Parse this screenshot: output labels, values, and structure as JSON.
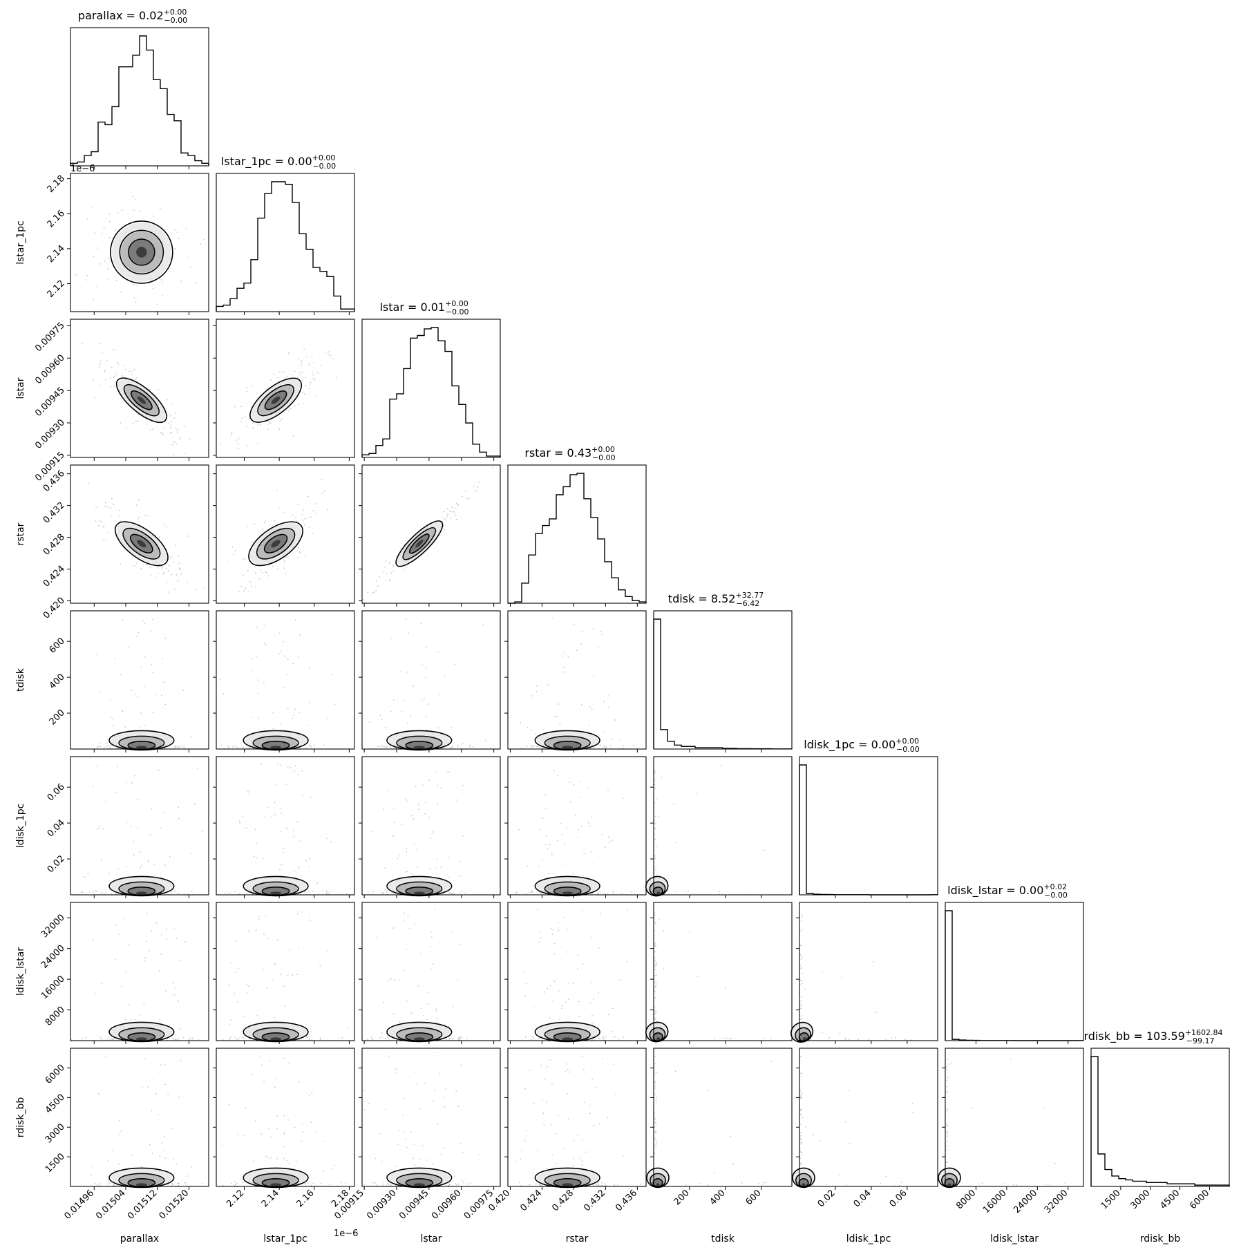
{
  "chart_data": {
    "type": "corner",
    "parameters": [
      {
        "name": "parallax",
        "xlabel": "parallax",
        "ylabel": "",
        "ticks": [
          "0.01496",
          "0.01504",
          "0.01512",
          "0.01520"
        ],
        "title": "parallax = 0.02",
        "plus": "+0.00",
        "minus": "−0.00",
        "offset": "",
        "median": 0.01508,
        "range": [
          0.0149,
          0.01525
        ],
        "skewed": false
      },
      {
        "name": "lstar_1pc",
        "xlabel": "lstar_1pc",
        "ylabel": "lstar_1pc",
        "ticks": [
          "2.12",
          "2.14",
          "2.16",
          "2.18"
        ],
        "title": "lstar_1pc = 0.00",
        "plus": "+0.00",
        "minus": "−0.00",
        "offset": "1e−6",
        "median": 2.138,
        "range": [
          2.104,
          2.183
        ],
        "skewed": false
      },
      {
        "name": "lstar",
        "xlabel": "lstar",
        "ylabel": "lstar",
        "ticks": [
          "0.00915",
          "0.00930",
          "0.00945",
          "0.00960",
          "0.00975"
        ],
        "title": "lstar = 0.01",
        "plus": "+0.00",
        "minus": "−0.00",
        "offset": "",
        "median": 0.009405,
        "range": [
          0.00914,
          0.00978
        ],
        "skewed": false
      },
      {
        "name": "rstar",
        "xlabel": "rstar",
        "ylabel": "rstar",
        "ticks": [
          "0.420",
          "0.424",
          "0.428",
          "0.432",
          "0.436"
        ],
        "title": "rstar = 0.43",
        "plus": "+0.00",
        "minus": "−0.00",
        "offset": "",
        "median": 0.4272,
        "range": [
          0.4197,
          0.4371
        ],
        "skewed": false
      },
      {
        "name": "tdisk",
        "xlabel": "tdisk",
        "ylabel": "tdisk",
        "ticks": [
          "200",
          "400",
          "600"
        ],
        "title": "tdisk = 8.52",
        "plus": "+32.77",
        "minus": "−6.42",
        "offset": "",
        "median": 8.52,
        "range": [
          0,
          770
        ],
        "skewed": true
      },
      {
        "name": "ldisk_1pc",
        "xlabel": "ldisk_1pc",
        "ylabel": "ldisk_1pc",
        "ticks": [
          "0.02",
          "0.04",
          "0.06"
        ],
        "title": "ldisk_1pc = 0.00",
        "plus": "+0.00",
        "minus": "−0.00",
        "offset": "",
        "median": 0.0004,
        "range": [
          0,
          0.077
        ],
        "skewed": true
      },
      {
        "name": "ldisk_lstar",
        "xlabel": "ldisk_lstar",
        "ylabel": "ldisk_lstar",
        "ticks": [
          "8000",
          "16000",
          "24000",
          "32000"
        ],
        "title": "ldisk_lstar = 0.00",
        "plus": "+0.02",
        "minus": "−0.00",
        "offset": "",
        "median": 0,
        "range": [
          0,
          36000
        ],
        "skewed": true
      },
      {
        "name": "rdisk_bb",
        "xlabel": "rdisk_bb",
        "ylabel": "rdisk_bb",
        "ticks": [
          "1500",
          "3000",
          "4500",
          "6000"
        ],
        "title": "rdisk_bb = 103.59",
        "plus": "+1602.84",
        "minus": "−99.17",
        "offset": "",
        "median": 103.59,
        "range": [
          0,
          7000
        ],
        "skewed": true
      }
    ],
    "histograms": [
      [
        2,
        3,
        8,
        11,
        34,
        32,
        46,
        77,
        77,
        86,
        101,
        90,
        67,
        60,
        40,
        35,
        10,
        8,
        4,
        2
      ],
      [
        4,
        5,
        10,
        18,
        22,
        40,
        72,
        91,
        100,
        100,
        98,
        84,
        60,
        48,
        34,
        31,
        27,
        12,
        2,
        2
      ],
      [
        2,
        3,
        9,
        14,
        44,
        48,
        67,
        90,
        92,
        97,
        98,
        88,
        80,
        54,
        40,
        26,
        10,
        4,
        1,
        1
      ],
      [
        0,
        1,
        15,
        36,
        52,
        58,
        63,
        81,
        87,
        96,
        97,
        78,
        64,
        48,
        31,
        19,
        10,
        5,
        2,
        1
      ],
      [
        100,
        15,
        6,
        3,
        2,
        2,
        1,
        1,
        1,
        1,
        0.5,
        0.5,
        0.3,
        0.3,
        0.2,
        0.2,
        0.2,
        0.1,
        0.1,
        0.1
      ],
      [
        100,
        1,
        0.5,
        0.3,
        0.2,
        0.1,
        0.1,
        0.1,
        0.1,
        0.1,
        0,
        0,
        0,
        0,
        0,
        0,
        0,
        0,
        0,
        0.1
      ],
      [
        100,
        1,
        0.5,
        0.3,
        0.2,
        0.1,
        0.1,
        0.1,
        0.1,
        0.1,
        0,
        0,
        0,
        0,
        0,
        0,
        0,
        0,
        0,
        0.1
      ],
      [
        100,
        25,
        13,
        8,
        6,
        5,
        4,
        4,
        3,
        3,
        3,
        2,
        2,
        2,
        2,
        1,
        1,
        1,
        1,
        1
      ]
    ],
    "correlations": [
      [
        1,
        0,
        0,
        0,
        0,
        0,
        0,
        0
      ],
      [
        0,
        1,
        0,
        0,
        0,
        0,
        0,
        0
      ],
      [
        -0.85,
        0.8,
        1,
        0,
        0,
        0,
        0,
        0
      ],
      [
        -0.75,
        0.7,
        0.97,
        1,
        0,
        0,
        0,
        0
      ],
      [
        0,
        0,
        0,
        0,
        1,
        0,
        0,
        0
      ],
      [
        0,
        0,
        0,
        0,
        0.3,
        1,
        0,
        0
      ],
      [
        0,
        0,
        0,
        0,
        0.3,
        0.6,
        1,
        0
      ],
      [
        0,
        0,
        0,
        0,
        0,
        0,
        0,
        1
      ]
    ]
  }
}
